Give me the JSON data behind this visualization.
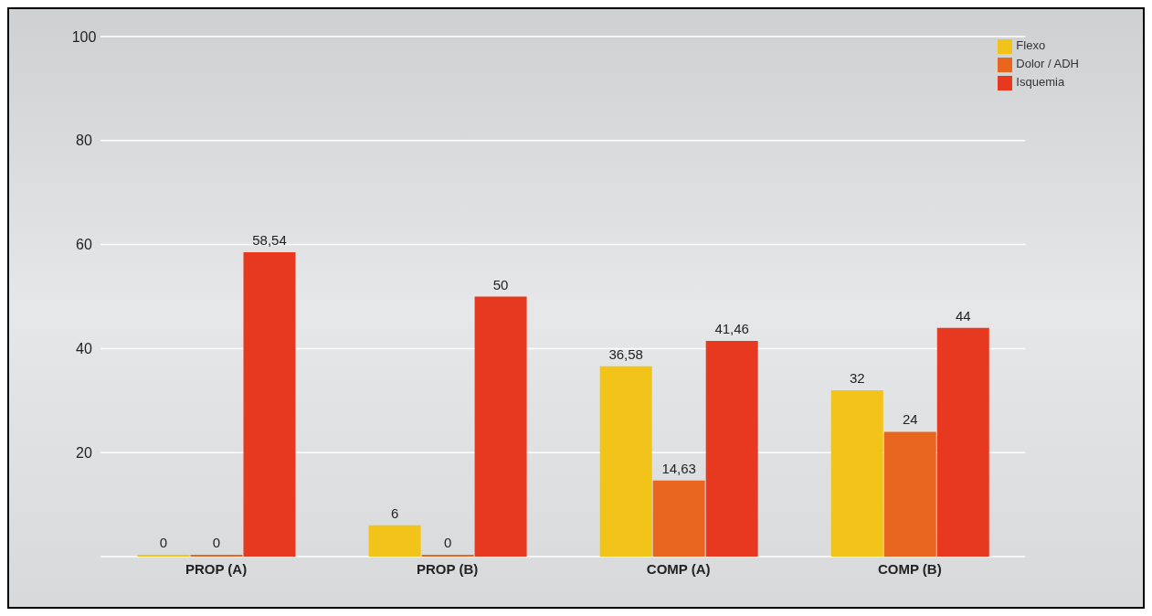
{
  "chart_data": {
    "type": "bar",
    "categories": [
      "PROP (A)",
      "PROP (B)",
      "COMP (A)",
      "COMP (B)"
    ],
    "series": [
      {
        "name": "Flexo",
        "color": "#f2c318",
        "values": [
          0,
          6,
          36.58,
          32
        ],
        "value_labels": [
          "0",
          "6",
          "36,58",
          "32"
        ]
      },
      {
        "name": "Dolor / ADH",
        "color": "#e8661f",
        "values": [
          0,
          0,
          14.63,
          24
        ],
        "value_labels": [
          "0",
          "0",
          "14,63",
          "24"
        ]
      },
      {
        "name": "Isquemia",
        "color": "#e6391f",
        "values": [
          58.54,
          50,
          41.46,
          44
        ],
        "value_labels": [
          "58,54",
          "50",
          "41,46",
          "44"
        ]
      }
    ],
    "ylim": [
      0,
      100
    ],
    "yticks": [
      {
        "value": 0,
        "label": null
      },
      20,
      40,
      60,
      80,
      100
    ],
    "grid": "y",
    "legend": "top right"
  }
}
